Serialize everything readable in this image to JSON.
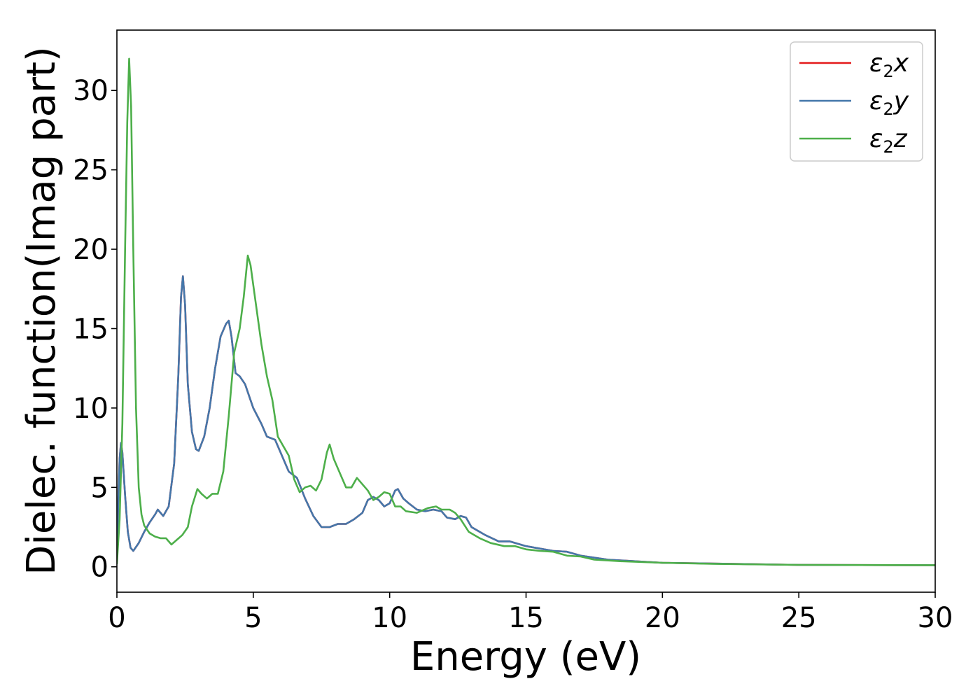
{
  "chart_data": {
    "type": "line",
    "title": "",
    "xlabel": "Energy (eV)",
    "ylabel": "Dielec. function(Imag part)",
    "xlim": [
      0,
      30
    ],
    "ylim": [
      -1.6,
      33.8
    ],
    "xticks": [
      0,
      5,
      10,
      15,
      20,
      25,
      30
    ],
    "yticks": [
      0,
      5,
      10,
      15,
      20,
      25,
      30
    ],
    "grid": false,
    "legend_position": "top-right",
    "series": [
      {
        "name": "ε2x",
        "legend_base": "ε",
        "legend_sub": "2",
        "legend_suffix": "x",
        "color": "#e41a1c",
        "points": [
          [
            0,
            0.5
          ],
          [
            0.05,
            4.0
          ],
          [
            0.1,
            6.8
          ],
          [
            0.15,
            7.8
          ],
          [
            0.2,
            7.2
          ],
          [
            0.3,
            4.5
          ],
          [
            0.4,
            2.2
          ],
          [
            0.5,
            1.2
          ],
          [
            0.6,
            1.0
          ],
          [
            0.8,
            1.5
          ],
          [
            1.0,
            2.2
          ],
          [
            1.2,
            2.8
          ],
          [
            1.4,
            3.3
          ],
          [
            1.5,
            3.6
          ],
          [
            1.7,
            3.2
          ],
          [
            1.9,
            3.8
          ],
          [
            2.1,
            6.5
          ],
          [
            2.25,
            12.0
          ],
          [
            2.35,
            17.0
          ],
          [
            2.42,
            18.3
          ],
          [
            2.5,
            16.5
          ],
          [
            2.6,
            11.5
          ],
          [
            2.75,
            8.5
          ],
          [
            2.9,
            7.4
          ],
          [
            3.0,
            7.3
          ],
          [
            3.2,
            8.2
          ],
          [
            3.4,
            10.0
          ],
          [
            3.6,
            12.5
          ],
          [
            3.8,
            14.5
          ],
          [
            4.0,
            15.3
          ],
          [
            4.1,
            15.5
          ],
          [
            4.2,
            14.5
          ],
          [
            4.35,
            12.2
          ],
          [
            4.5,
            12.0
          ],
          [
            4.7,
            11.5
          ],
          [
            5.0,
            10.0
          ],
          [
            5.3,
            9.0
          ],
          [
            5.5,
            8.2
          ],
          [
            5.8,
            8.0
          ],
          [
            6.0,
            7.2
          ],
          [
            6.3,
            6.0
          ],
          [
            6.6,
            5.6
          ],
          [
            6.9,
            4.3
          ],
          [
            7.2,
            3.2
          ],
          [
            7.5,
            2.5
          ],
          [
            7.8,
            2.5
          ],
          [
            8.1,
            2.7
          ],
          [
            8.4,
            2.7
          ],
          [
            8.7,
            3.0
          ],
          [
            9.0,
            3.4
          ],
          [
            9.2,
            4.2
          ],
          [
            9.4,
            4.4
          ],
          [
            9.6,
            4.2
          ],
          [
            9.8,
            3.8
          ],
          [
            10.0,
            4.0
          ],
          [
            10.2,
            4.8
          ],
          [
            10.3,
            4.9
          ],
          [
            10.5,
            4.3
          ],
          [
            10.7,
            4.0
          ],
          [
            11.0,
            3.6
          ],
          [
            11.3,
            3.5
          ],
          [
            11.6,
            3.6
          ],
          [
            11.9,
            3.5
          ],
          [
            12.1,
            3.1
          ],
          [
            12.4,
            3.0
          ],
          [
            12.6,
            3.2
          ],
          [
            12.8,
            3.1
          ],
          [
            13.0,
            2.5
          ],
          [
            13.5,
            2.0
          ],
          [
            14.0,
            1.6
          ],
          [
            14.4,
            1.6
          ],
          [
            15.0,
            1.3
          ],
          [
            16.0,
            1.0
          ],
          [
            16.5,
            0.95
          ],
          [
            17.0,
            0.7
          ],
          [
            18.0,
            0.45
          ],
          [
            19.0,
            0.35
          ],
          [
            20.0,
            0.25
          ],
          [
            22.0,
            0.2
          ],
          [
            25.0,
            0.12
          ],
          [
            30.0,
            0.1
          ]
        ]
      },
      {
        "name": "ε2y",
        "legend_base": "ε",
        "legend_sub": "2",
        "legend_suffix": "y",
        "color": "#4477aa",
        "points": [
          [
            0,
            0.5
          ],
          [
            0.05,
            4.0
          ],
          [
            0.1,
            6.8
          ],
          [
            0.15,
            7.8
          ],
          [
            0.2,
            7.2
          ],
          [
            0.3,
            4.5
          ],
          [
            0.4,
            2.2
          ],
          [
            0.5,
            1.2
          ],
          [
            0.6,
            1.0
          ],
          [
            0.8,
            1.5
          ],
          [
            1.0,
            2.2
          ],
          [
            1.2,
            2.8
          ],
          [
            1.4,
            3.3
          ],
          [
            1.5,
            3.6
          ],
          [
            1.7,
            3.2
          ],
          [
            1.9,
            3.8
          ],
          [
            2.1,
            6.5
          ],
          [
            2.25,
            12.0
          ],
          [
            2.35,
            17.0
          ],
          [
            2.42,
            18.3
          ],
          [
            2.5,
            16.5
          ],
          [
            2.6,
            11.5
          ],
          [
            2.75,
            8.5
          ],
          [
            2.9,
            7.4
          ],
          [
            3.0,
            7.3
          ],
          [
            3.2,
            8.2
          ],
          [
            3.4,
            10.0
          ],
          [
            3.6,
            12.5
          ],
          [
            3.8,
            14.5
          ],
          [
            4.0,
            15.3
          ],
          [
            4.1,
            15.5
          ],
          [
            4.2,
            14.5
          ],
          [
            4.35,
            12.2
          ],
          [
            4.5,
            12.0
          ],
          [
            4.7,
            11.5
          ],
          [
            5.0,
            10.0
          ],
          [
            5.3,
            9.0
          ],
          [
            5.5,
            8.2
          ],
          [
            5.8,
            8.0
          ],
          [
            6.0,
            7.2
          ],
          [
            6.3,
            6.0
          ],
          [
            6.6,
            5.6
          ],
          [
            6.9,
            4.3
          ],
          [
            7.2,
            3.2
          ],
          [
            7.5,
            2.5
          ],
          [
            7.8,
            2.5
          ],
          [
            8.1,
            2.7
          ],
          [
            8.4,
            2.7
          ],
          [
            8.7,
            3.0
          ],
          [
            9.0,
            3.4
          ],
          [
            9.2,
            4.2
          ],
          [
            9.4,
            4.4
          ],
          [
            9.6,
            4.2
          ],
          [
            9.8,
            3.8
          ],
          [
            10.0,
            4.0
          ],
          [
            10.2,
            4.8
          ],
          [
            10.3,
            4.9
          ],
          [
            10.5,
            4.3
          ],
          [
            10.7,
            4.0
          ],
          [
            11.0,
            3.6
          ],
          [
            11.3,
            3.5
          ],
          [
            11.6,
            3.6
          ],
          [
            11.9,
            3.5
          ],
          [
            12.1,
            3.1
          ],
          [
            12.4,
            3.0
          ],
          [
            12.6,
            3.2
          ],
          [
            12.8,
            3.1
          ],
          [
            13.0,
            2.5
          ],
          [
            13.5,
            2.0
          ],
          [
            14.0,
            1.6
          ],
          [
            14.4,
            1.6
          ],
          [
            15.0,
            1.3
          ],
          [
            16.0,
            1.0
          ],
          [
            16.5,
            0.95
          ],
          [
            17.0,
            0.7
          ],
          [
            18.0,
            0.45
          ],
          [
            19.0,
            0.35
          ],
          [
            20.0,
            0.25
          ],
          [
            22.0,
            0.2
          ],
          [
            25.0,
            0.12
          ],
          [
            30.0,
            0.1
          ]
        ]
      },
      {
        "name": "ε2z",
        "legend_base": "ε",
        "legend_sub": "2",
        "legend_suffix": "z",
        "color": "#4daf4a",
        "points": [
          [
            0,
            0.2
          ],
          [
            0.1,
            3.0
          ],
          [
            0.2,
            9.0
          ],
          [
            0.3,
            20.0
          ],
          [
            0.38,
            28.0
          ],
          [
            0.45,
            32.0
          ],
          [
            0.52,
            29.0
          ],
          [
            0.6,
            20.0
          ],
          [
            0.7,
            10.0
          ],
          [
            0.8,
            5.0
          ],
          [
            0.9,
            3.3
          ],
          [
            1.0,
            2.6
          ],
          [
            1.2,
            2.1
          ],
          [
            1.4,
            1.9
          ],
          [
            1.6,
            1.8
          ],
          [
            1.8,
            1.8
          ],
          [
            2.0,
            1.4
          ],
          [
            2.2,
            1.7
          ],
          [
            2.4,
            2.0
          ],
          [
            2.6,
            2.5
          ],
          [
            2.75,
            3.8
          ],
          [
            2.95,
            4.9
          ],
          [
            3.1,
            4.6
          ],
          [
            3.3,
            4.3
          ],
          [
            3.5,
            4.6
          ],
          [
            3.7,
            4.6
          ],
          [
            3.9,
            6.0
          ],
          [
            4.1,
            9.5
          ],
          [
            4.3,
            13.5
          ],
          [
            4.5,
            15.0
          ],
          [
            4.65,
            17.0
          ],
          [
            4.8,
            19.6
          ],
          [
            4.9,
            19.0
          ],
          [
            5.1,
            16.5
          ],
          [
            5.3,
            14.0
          ],
          [
            5.5,
            12.0
          ],
          [
            5.7,
            10.5
          ],
          [
            5.9,
            8.2
          ],
          [
            6.1,
            7.6
          ],
          [
            6.3,
            7.0
          ],
          [
            6.5,
            5.5
          ],
          [
            6.7,
            4.7
          ],
          [
            6.9,
            5.0
          ],
          [
            7.1,
            5.1
          ],
          [
            7.3,
            4.8
          ],
          [
            7.5,
            5.5
          ],
          [
            7.7,
            7.2
          ],
          [
            7.8,
            7.7
          ],
          [
            7.95,
            6.8
          ],
          [
            8.2,
            5.8
          ],
          [
            8.4,
            5.0
          ],
          [
            8.6,
            5.0
          ],
          [
            8.8,
            5.6
          ],
          [
            9.0,
            5.2
          ],
          [
            9.2,
            4.8
          ],
          [
            9.4,
            4.2
          ],
          [
            9.6,
            4.4
          ],
          [
            9.8,
            4.7
          ],
          [
            10.0,
            4.6
          ],
          [
            10.2,
            3.8
          ],
          [
            10.4,
            3.8
          ],
          [
            10.6,
            3.5
          ],
          [
            11.0,
            3.4
          ],
          [
            11.4,
            3.7
          ],
          [
            11.7,
            3.8
          ],
          [
            11.9,
            3.6
          ],
          [
            12.2,
            3.6
          ],
          [
            12.4,
            3.4
          ],
          [
            12.6,
            3.0
          ],
          [
            12.9,
            2.2
          ],
          [
            13.3,
            1.8
          ],
          [
            13.7,
            1.5
          ],
          [
            14.2,
            1.3
          ],
          [
            14.6,
            1.3
          ],
          [
            15.0,
            1.1
          ],
          [
            15.5,
            1.0
          ],
          [
            16.0,
            0.95
          ],
          [
            16.5,
            0.7
          ],
          [
            17.0,
            0.65
          ],
          [
            17.5,
            0.45
          ],
          [
            18.5,
            0.35
          ],
          [
            20.0,
            0.25
          ],
          [
            22.0,
            0.18
          ],
          [
            25.0,
            0.12
          ],
          [
            30.0,
            0.1
          ]
        ]
      }
    ]
  }
}
